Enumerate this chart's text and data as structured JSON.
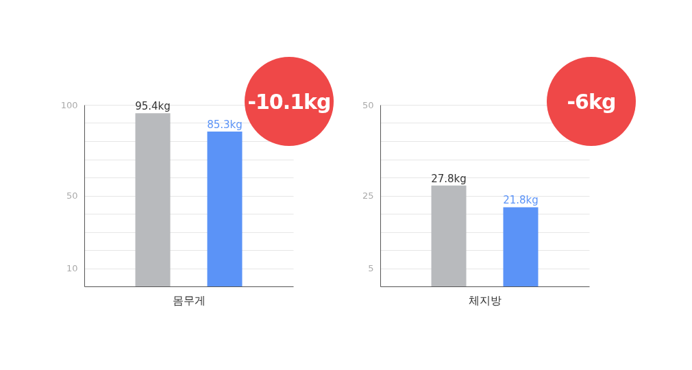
{
  "chart_data": [
    {
      "type": "bar",
      "xlabel": "몸무게",
      "categories": [
        null,
        null
      ],
      "values": [
        95.4,
        85.3
      ],
      "colors": [
        "#b8babd",
        "#5b93f7"
      ],
      "value_labels": [
        "95.4kg",
        "85.3kg"
      ],
      "ylim": [
        0,
        100
      ],
      "yticks": [
        10,
        {
          "value": 20,
          "label": null
        },
        {
          "value": 30,
          "label": null
        },
        {
          "value": 40,
          "label": null
        },
        50,
        {
          "value": 60,
          "label": null
        },
        {
          "value": 70,
          "label": null
        },
        {
          "value": 80,
          "label": null
        },
        {
          "value": 90,
          "label": null
        },
        100
      ],
      "grid": "y",
      "annotations": [
        "-10.1kg"
      ]
    },
    {
      "type": "bar",
      "xlabel": "체지방",
      "categories": [
        null,
        null
      ],
      "values": [
        27.8,
        21.8
      ],
      "colors": [
        "#b8babd",
        "#5b93f7"
      ],
      "value_labels": [
        "27.8kg",
        "21.8kg"
      ],
      "ylim": [
        0,
        50
      ],
      "yticks": [
        5,
        {
          "value": 10,
          "label": null
        },
        {
          "value": 15,
          "label": null
        },
        {
          "value": 20,
          "label": null
        },
        25,
        {
          "value": 30,
          "label": null
        },
        {
          "value": 35,
          "label": null
        },
        {
          "value": 40,
          "label": null
        },
        {
          "value": 45,
          "label": null
        },
        50
      ],
      "grid": "y",
      "annotations": [
        "-6kg"
      ]
    }
  ]
}
